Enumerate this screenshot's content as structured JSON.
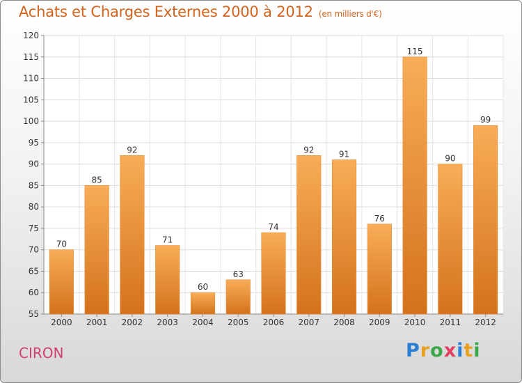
{
  "title": "Achats et Charges Externes 2000 à 2012",
  "subtitle": "(en milliers d'€)",
  "city": "CIRON",
  "logo": {
    "letters": [
      "P",
      "r",
      "o",
      "x",
      "i",
      "t",
      "i"
    ],
    "colors": [
      "#2a7fd4",
      "#e8a020",
      "#3aa84a",
      "#e04060",
      "#2a7fd4",
      "#e8a020",
      "#3aa84a"
    ]
  },
  "colors": {
    "bar": "#f29a3e",
    "bar_light": "#f8ad58",
    "bar_dark": "#d4721c",
    "title": "#d2641e",
    "city": "#d2416e"
  },
  "chart_data": {
    "type": "bar",
    "categories": [
      "2000",
      "2001",
      "2002",
      "2003",
      "2004",
      "2005",
      "2006",
      "2007",
      "2008",
      "2009",
      "2010",
      "2011",
      "2012"
    ],
    "values": [
      70,
      85,
      92,
      71,
      60,
      63,
      74,
      92,
      91,
      76,
      115,
      90,
      99
    ],
    "title": "Achats et Charges Externes 2000 à 2012",
    "xlabel": "",
    "ylabel": "",
    "ylim": [
      55,
      120
    ],
    "yticks": [
      55,
      60,
      65,
      70,
      75,
      80,
      85,
      90,
      95,
      100,
      105,
      110,
      115,
      120
    ],
    "grid": true,
    "data_labels": true
  }
}
